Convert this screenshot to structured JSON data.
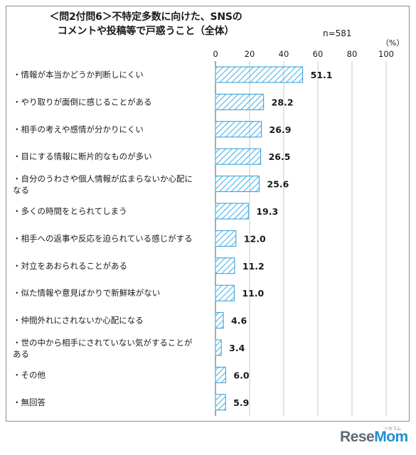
{
  "title_line1": "＜問2付問6＞不特定多数に向けた、SNSの",
  "title_line2": "コメントや投稿等で戸惑うこと（全体）",
  "sample_size": "n=581",
  "unit": "（%）",
  "brand": {
    "part1": "Rese",
    "part2": "Mom",
    "sub": "リセマム"
  },
  "colors": {
    "bar_stroke": "#2b9bd4",
    "bar_hatch": "#4fb3e3",
    "grid": "#c8c8c8"
  },
  "chart_data": {
    "type": "bar",
    "orientation": "horizontal",
    "xlim": [
      0,
      100
    ],
    "ticks": [
      0,
      20,
      40,
      60,
      80,
      100
    ],
    "grid": true,
    "categories": [
      [
        "・情報が本当かどうか判断しにくい"
      ],
      [
        "・やり取りが面倒に感じることがある"
      ],
      [
        "・相手の考えや感情が分かりにくい"
      ],
      [
        "・目にする情報に断片的なものが多い"
      ],
      [
        "・自分のうわさや個人情報が広まらないか心配に",
        "なる"
      ],
      [
        "・多くの時間をとられてしまう"
      ],
      [
        "・相手への返事や反応を迫られている感じがする"
      ],
      [
        "・対立をあおられることがある"
      ],
      [
        "・似た情報や意見ばかりで新鮮味がない"
      ],
      [
        "・仲間外れにされないか心配になる"
      ],
      [
        "・世の中から相手にされていない気がすることが",
        "ある"
      ],
      [
        "・その他"
      ],
      [
        "・無回答"
      ]
    ],
    "values": [
      51.1,
      28.2,
      26.9,
      26.5,
      25.6,
      19.3,
      12.0,
      11.2,
      11.0,
      4.6,
      3.4,
      6.0,
      5.9
    ],
    "value_labels": [
      "51.1",
      "28.2",
      "26.9",
      "26.5",
      "25.6",
      "19.3",
      "12.0",
      "11.2",
      "11.0",
      "4.6",
      "3.4",
      "6.0",
      "5.9"
    ]
  }
}
